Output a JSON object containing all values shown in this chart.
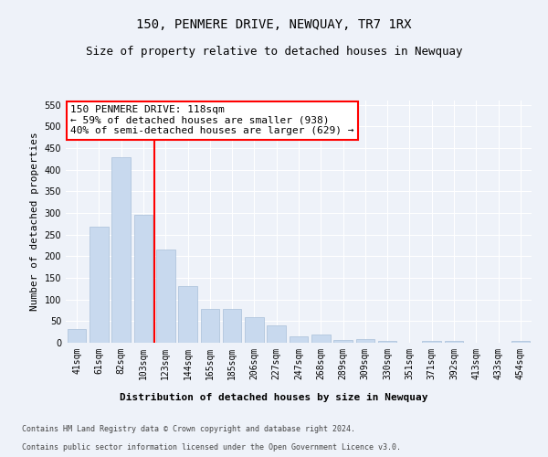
{
  "title": "150, PENMERE DRIVE, NEWQUAY, TR7 1RX",
  "subtitle": "Size of property relative to detached houses in Newquay",
  "xlabel": "Distribution of detached houses by size in Newquay",
  "ylabel": "Number of detached properties",
  "categories": [
    "41sqm",
    "61sqm",
    "82sqm",
    "103sqm",
    "123sqm",
    "144sqm",
    "165sqm",
    "185sqm",
    "206sqm",
    "227sqm",
    "247sqm",
    "268sqm",
    "289sqm",
    "309sqm",
    "330sqm",
    "351sqm",
    "371sqm",
    "392sqm",
    "413sqm",
    "433sqm",
    "454sqm"
  ],
  "values": [
    32,
    268,
    428,
    295,
    215,
    130,
    79,
    79,
    59,
    41,
    14,
    18,
    6,
    9,
    4,
    0,
    5,
    5,
    1,
    0,
    4
  ],
  "bar_color": "#c8d9ee",
  "bar_edge_color": "#a8bfd8",
  "vline_color": "red",
  "vline_index": 4,
  "annotation_text": "150 PENMERE DRIVE: 118sqm\n← 59% of detached houses are smaller (938)\n40% of semi-detached houses are larger (629) →",
  "annotation_box_color": "white",
  "annotation_box_edge_color": "red",
  "ylim": [
    0,
    560
  ],
  "yticks": [
    0,
    50,
    100,
    150,
    200,
    250,
    300,
    350,
    400,
    450,
    500,
    550
  ],
  "footer_line1": "Contains HM Land Registry data © Crown copyright and database right 2024.",
  "footer_line2": "Contains public sector information licensed under the Open Government Licence v3.0.",
  "bg_color": "#eef2f9",
  "grid_color": "white",
  "title_fontsize": 10,
  "subtitle_fontsize": 9,
  "annotation_fontsize": 8,
  "xlabel_fontsize": 8,
  "ylabel_fontsize": 8,
  "footer_fontsize": 6,
  "tick_fontsize": 7
}
